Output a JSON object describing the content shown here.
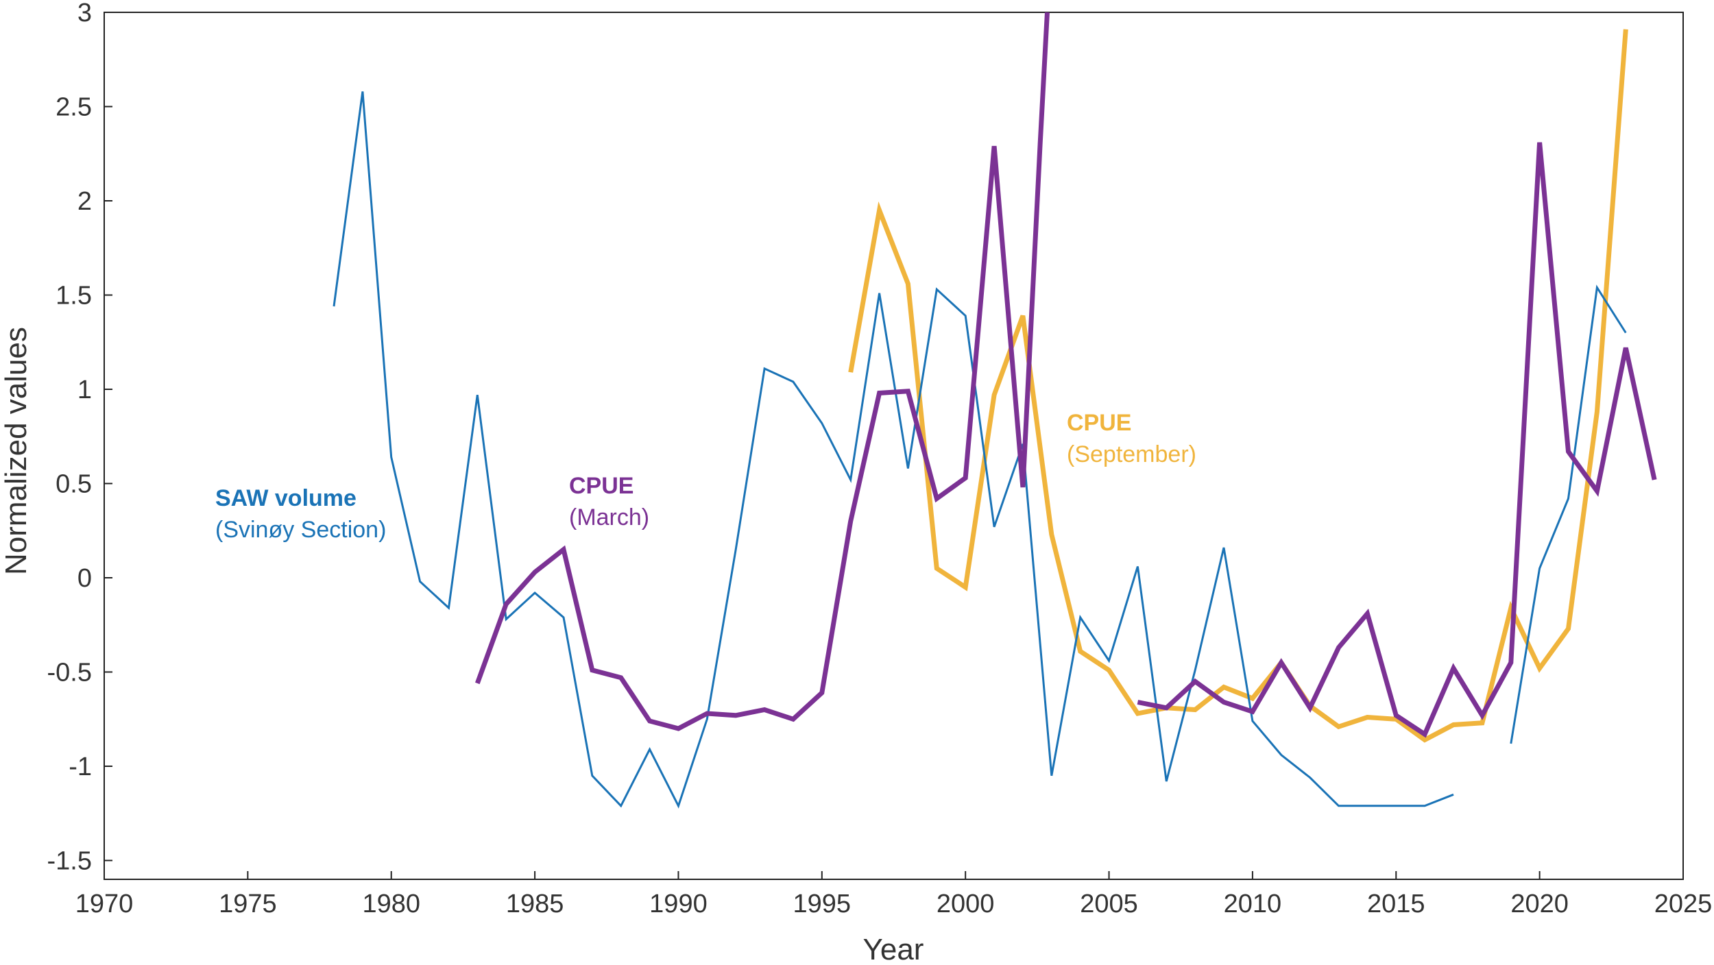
{
  "chart_data": {
    "type": "line",
    "xlabel": "Year",
    "ylabel": "Normalized values",
    "xlim": [
      1970,
      2025
    ],
    "ylim": [
      -1.6,
      3
    ],
    "xticks": [
      1970,
      1975,
      1980,
      1985,
      1990,
      1995,
      2000,
      2005,
      2010,
      2015,
      2020,
      2025
    ],
    "yticks": [
      -1.5,
      -1,
      -0.5,
      0,
      0.5,
      1,
      1.5,
      2,
      2.5,
      3
    ],
    "grid": false,
    "series": [
      {
        "key": "saw",
        "color": "#1a73b6",
        "x": [
          1978,
          1979,
          1980,
          1981,
          1982,
          1983,
          1984,
          1985,
          1986,
          1987,
          1988,
          1989,
          1990,
          1991,
          1992,
          1993,
          1994,
          1995,
          1996,
          1997,
          1998,
          1999,
          2000,
          2001,
          2002,
          2003,
          2004,
          2005,
          2006,
          2007,
          2008,
          2009,
          2010,
          2011,
          2012,
          2013,
          2014,
          2015,
          2016,
          2017,
          null,
          2019,
          2020,
          2021,
          2022,
          2023
        ],
        "y": [
          1.44,
          2.58,
          0.64,
          -0.02,
          -0.16,
          0.97,
          -0.22,
          -0.08,
          -0.21,
          -1.05,
          -1.21,
          -0.91,
          -1.21,
          -0.75,
          0.15,
          1.11,
          1.04,
          0.82,
          0.52,
          1.51,
          0.58,
          1.53,
          1.39,
          0.27,
          0.71,
          -1.05,
          -0.21,
          -0.44,
          0.06,
          -1.08,
          -0.49,
          0.16,
          -0.76,
          -0.94,
          -1.06,
          -1.21,
          -1.21,
          -1.21,
          -1.21,
          -1.15,
          null,
          -0.88,
          0.05,
          0.42,
          1.54,
          1.3
        ]
      },
      {
        "key": "march",
        "color": "#7b3294",
        "x": [
          1983,
          1984,
          1985,
          1986,
          1987,
          1988,
          1989,
          1990,
          1991,
          1992,
          1993,
          1994,
          1995,
          1996,
          1997,
          1998,
          1999,
          2000,
          2001,
          2002,
          2002.6,
          2002.85,
          null,
          2006,
          2007,
          2008,
          2009,
          2010,
          2011,
          2012,
          2013,
          2014,
          2015,
          2016,
          2017,
          2018,
          2019,
          2020,
          2021,
          2022,
          2023,
          2024
        ],
        "y": [
          -0.56,
          -0.14,
          0.03,
          0.15,
          -0.49,
          -0.53,
          -0.76,
          -0.8,
          -0.72,
          -0.73,
          -0.7,
          -0.75,
          -0.61,
          0.3,
          0.98,
          0.99,
          0.42,
          0.53,
          2.29,
          0.48,
          2.3,
          3.0,
          null,
          -0.66,
          -0.69,
          -0.55,
          -0.66,
          -0.71,
          -0.45,
          -0.69,
          -0.37,
          -0.19,
          -0.73,
          -0.83,
          -0.48,
          -0.73,
          -0.45,
          2.31,
          0.67,
          0.46,
          1.22,
          0.52
        ]
      },
      {
        "key": "september",
        "color": "#f0b43c",
        "x": [
          1996,
          1997,
          1998,
          1999,
          2000,
          2001,
          2002,
          2003,
          2004,
          2005,
          2006,
          2007,
          2008,
          2009,
          2010,
          2011,
          2012,
          2013,
          2014,
          2015,
          2016,
          2017,
          2018,
          2019,
          2020,
          2021,
          2022,
          2023
        ],
        "y": [
          1.09,
          1.95,
          1.56,
          0.05,
          -0.05,
          0.97,
          1.39,
          0.23,
          -0.39,
          -0.49,
          -0.72,
          -0.69,
          -0.7,
          -0.58,
          -0.64,
          -0.45,
          -0.68,
          -0.79,
          -0.74,
          -0.75,
          -0.86,
          -0.78,
          -0.77,
          -0.16,
          -0.48,
          -0.27,
          0.88,
          2.91
        ]
      }
    ],
    "annotations": {
      "saw_title": "SAW volume",
      "saw_sub": "(Svinøy Section)",
      "march_title": "CPUE",
      "march_sub": "(March)",
      "sep_title": "CPUE",
      "sep_sub": "(September)"
    }
  }
}
